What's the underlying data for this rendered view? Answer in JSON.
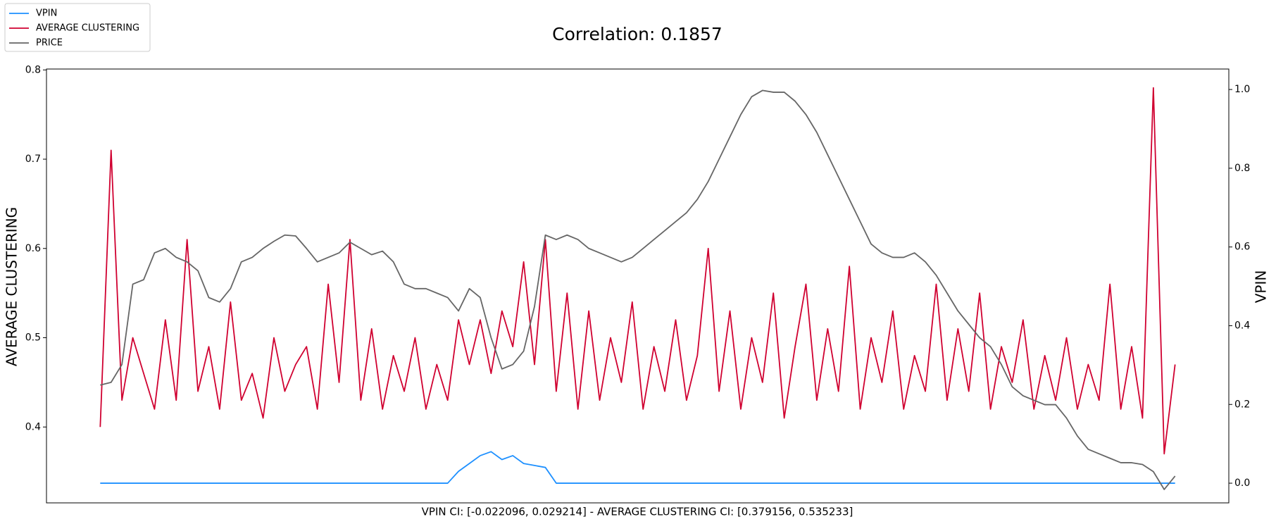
{
  "chart_data": {
    "type": "line",
    "title": "Correlation: 0.1857",
    "xlabel": "VPIN CI: [-0.022096, 0.029214] - AVERAGE CLUSTERING CI: [0.379156, 0.535233]",
    "ylabel": "AVERAGE CLUSTERING",
    "y2label": "VPIN",
    "legend": "upper left",
    "xlim": [
      -4.95,
      103.95
    ],
    "ylim": [
      0.315,
      0.801
    ],
    "yticks": [
      0.4,
      0.5,
      0.6,
      0.7,
      0.8
    ],
    "ycolor": "#d00030",
    "y2lim": [
      -0.05,
      1.052
    ],
    "y2ticks": [
      {
        "value": 0,
        "label": "0.0"
      },
      0.2,
      0.4,
      0.6,
      0.8,
      {
        "value": 1,
        "label": "1.0"
      }
    ],
    "y2color": "#1e90ff",
    "x": [
      0,
      1,
      2,
      3,
      4,
      5,
      6,
      7,
      8,
      9,
      10,
      11,
      12,
      13,
      14,
      15,
      16,
      17,
      18,
      19,
      20,
      21,
      22,
      23,
      24,
      25,
      26,
      27,
      28,
      29,
      30,
      31,
      32,
      33,
      34,
      35,
      36,
      37,
      38,
      39,
      40,
      41,
      42,
      43,
      44,
      45,
      46,
      47,
      48,
      49,
      50,
      51,
      52,
      53,
      54,
      55,
      56,
      57,
      58,
      59,
      60,
      61,
      62,
      63,
      64,
      65,
      66,
      67,
      68,
      69,
      70,
      71,
      72,
      73,
      74,
      75,
      76,
      77,
      78,
      79,
      80,
      81,
      82,
      83,
      84,
      85,
      86,
      87,
      88,
      89,
      90,
      91,
      92,
      93,
      94,
      95,
      96,
      97,
      98,
      99
    ],
    "series": [
      {
        "name": "VPIN",
        "color": "#1e90ff",
        "axis": "y2",
        "values": [
          0,
          0,
          0,
          0,
          0,
          0,
          0,
          0,
          0,
          0,
          0,
          0,
          0,
          0,
          0,
          0,
          0,
          0,
          0,
          0,
          0,
          0,
          0,
          0,
          0,
          0,
          0,
          0,
          0,
          0,
          0,
          0,
          0,
          0.03,
          0.05,
          0.07,
          0.08,
          0.06,
          0.07,
          0.05,
          0.045,
          0.04,
          0,
          0,
          0,
          0,
          0,
          0,
          0,
          0,
          0,
          0,
          0,
          0,
          0,
          0,
          0,
          0,
          0,
          0,
          0,
          0,
          0,
          0,
          0,
          0,
          0,
          0,
          0,
          0,
          0,
          0,
          0,
          0,
          0,
          0,
          0,
          0,
          0,
          0,
          0,
          0,
          0,
          0,
          0,
          0,
          0,
          0,
          0,
          0,
          0,
          0,
          0,
          0,
          0,
          0,
          0,
          0,
          0,
          0
        ]
      },
      {
        "name": "AVERAGE CLUSTERING",
        "color": "#d00030",
        "axis": "y",
        "values": [
          0.4,
          0.71,
          0.43,
          0.5,
          0.46,
          0.42,
          0.52,
          0.43,
          0.61,
          0.44,
          0.49,
          0.42,
          0.54,
          0.43,
          0.46,
          0.41,
          0.5,
          0.44,
          0.47,
          0.49,
          0.42,
          0.56,
          0.45,
          0.61,
          0.43,
          0.51,
          0.42,
          0.48,
          0.44,
          0.5,
          0.42,
          0.47,
          0.43,
          0.52,
          0.47,
          0.52,
          0.46,
          0.53,
          0.49,
          0.585,
          0.47,
          0.61,
          0.44,
          0.55,
          0.42,
          0.53,
          0.43,
          0.5,
          0.45,
          0.54,
          0.42,
          0.49,
          0.44,
          0.52,
          0.43,
          0.48,
          0.6,
          0.44,
          0.53,
          0.42,
          0.5,
          0.45,
          0.55,
          0.41,
          0.49,
          0.56,
          0.43,
          0.51,
          0.44,
          0.58,
          0.42,
          0.5,
          0.45,
          0.53,
          0.42,
          0.48,
          0.44,
          0.56,
          0.43,
          0.51,
          0.44,
          0.55,
          0.42,
          0.49,
          0.45,
          0.52,
          0.42,
          0.48,
          0.43,
          0.5,
          0.42,
          0.47,
          0.43,
          0.56,
          0.42,
          0.49,
          0.41,
          0.78,
          0.37,
          0.47
        ]
      },
      {
        "name": "PRICE",
        "color": "#666666",
        "axis": "y",
        "values": [
          0.447,
          0.45,
          0.47,
          0.56,
          0.565,
          0.595,
          0.6,
          0.59,
          0.585,
          0.575,
          0.545,
          0.54,
          0.555,
          0.585,
          0.59,
          0.6,
          0.608,
          0.615,
          0.614,
          0.6,
          0.585,
          0.59,
          0.595,
          0.607,
          0.6,
          0.593,
          0.597,
          0.585,
          0.56,
          0.555,
          0.555,
          0.55,
          0.545,
          0.53,
          0.555,
          0.545,
          0.5,
          0.465,
          0.47,
          0.485,
          0.535,
          0.615,
          0.61,
          0.615,
          0.61,
          0.6,
          0.595,
          0.59,
          0.585,
          0.59,
          0.6,
          0.61,
          0.62,
          0.63,
          0.64,
          0.655,
          0.675,
          0.7,
          0.725,
          0.75,
          0.77,
          0.777,
          0.775,
          0.775,
          0.765,
          0.75,
          0.73,
          0.705,
          0.68,
          0.655,
          0.63,
          0.605,
          0.595,
          0.59,
          0.59,
          0.595,
          0.585,
          0.57,
          0.55,
          0.53,
          0.515,
          0.5,
          0.49,
          0.47,
          0.445,
          0.435,
          0.43,
          0.425,
          0.425,
          0.41,
          0.39,
          0.375,
          0.37,
          0.365,
          0.36,
          0.36,
          0.358,
          0.35,
          0.33,
          0.345
        ]
      }
    ]
  }
}
